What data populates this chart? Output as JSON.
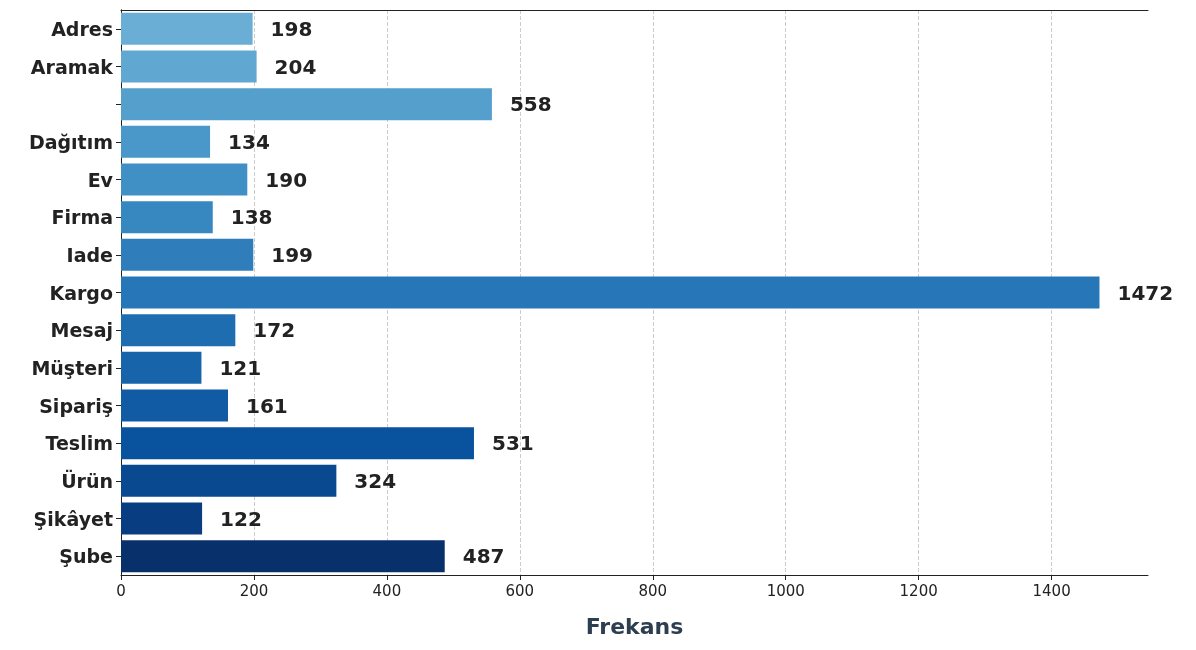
{
  "chart_data": {
    "type": "bar",
    "orientation": "horizontal",
    "xlabel": "Frekans",
    "categories": [
      "Adres",
      "Aramak",
      null,
      "Dağıtım",
      "Ev",
      "Firma",
      "Iade",
      "Kargo",
      "Mesaj",
      "Müşteri",
      "Sipariş",
      "Teslim",
      "Ürün",
      "Şikâyet",
      "Şube"
    ],
    "values": [
      198,
      204,
      558,
      134,
      190,
      138,
      199,
      1472,
      172,
      121,
      161,
      531,
      324,
      122,
      487
    ],
    "colors": [
      "#6aaed6",
      "#60a7d2",
      "#559fcd",
      "#4a98c9",
      "#4190c5",
      "#3787c0",
      "#2f7ebb",
      "#2676b8",
      "#1f6db1",
      "#1764ab",
      "#105ba4",
      "#09529d",
      "#084990",
      "#083e81",
      "#08306b"
    ],
    "xlim": [
      0,
      1545
    ],
    "xticks": [
      0,
      200,
      400,
      600,
      800,
      1000,
      1200,
      1400
    ],
    "grid": "x",
    "data_labels": true
  }
}
